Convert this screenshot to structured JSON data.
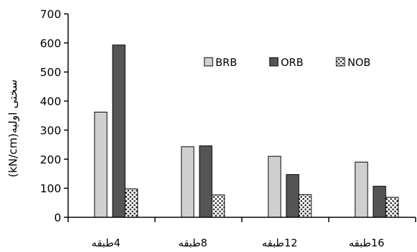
{
  "chart_data": {
    "type": "bar",
    "categories": [
      "4طبقه",
      "8طبقه",
      "12طبقه",
      "16طبقه"
    ],
    "series": [
      {
        "name": "BRB",
        "values": [
          362,
          243,
          210,
          190
        ],
        "color": "#cfcfcf",
        "pattern": "solid-light"
      },
      {
        "name": "ORB",
        "values": [
          593,
          246,
          147,
          107
        ],
        "color": "#555555",
        "pattern": "solid-dark"
      },
      {
        "name": "NOB",
        "values": [
          98,
          77,
          78,
          69
        ],
        "color": "#ffffff",
        "pattern": "dots"
      }
    ],
    "ylim": [
      0,
      700
    ],
    "yticks": [
      0,
      100,
      200,
      300,
      400,
      500,
      600,
      700
    ],
    "ylabel": "(kN/cm)سختی اولیه",
    "xlabel": "",
    "title": "",
    "grid": false,
    "legend_position": "top-right-inside"
  }
}
